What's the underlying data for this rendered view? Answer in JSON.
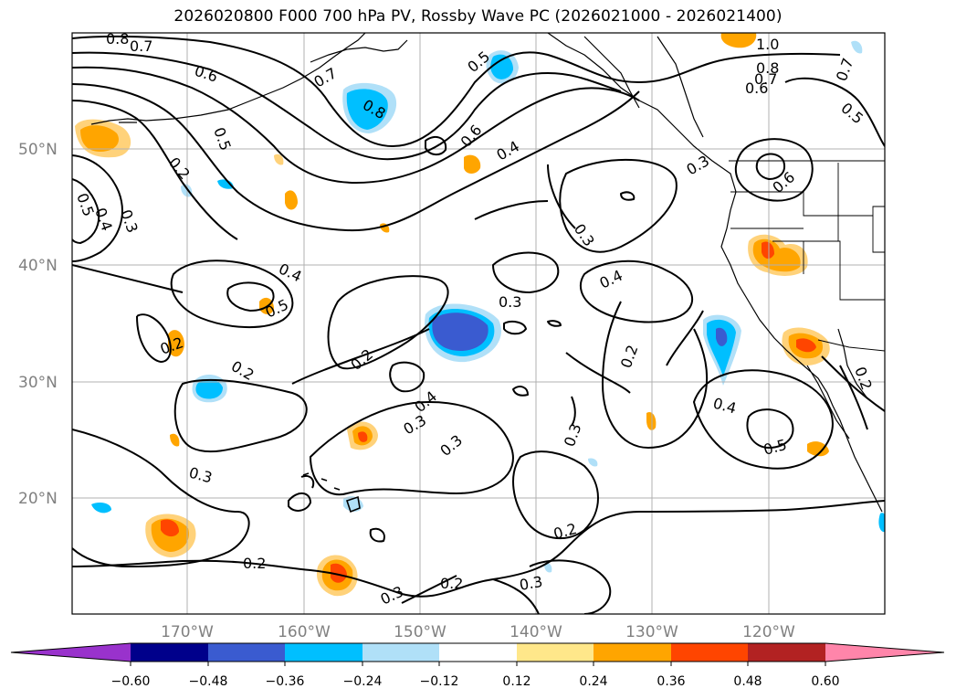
{
  "title": "2026020800 F000 700 hPa PV, Rossby Wave PC (2026021000 - 2026021400)",
  "map": {
    "lat_labels": [
      "50°N",
      "40°N",
      "30°N",
      "20°N"
    ],
    "lon_labels": [
      "170°W",
      "160°W",
      "150°W",
      "140°W",
      "130°W",
      "120°W"
    ]
  },
  "contour_labels": [
    "0.8",
    "0.7",
    "0.6",
    "0.5",
    "0.2",
    "0.5",
    "0.4",
    "0.3",
    "0.7",
    "0.8",
    "0.5",
    "0.6",
    "0.4",
    "1.0",
    "0.8",
    "0.7",
    "0.6",
    "0.7",
    "0.5",
    "0.6",
    "0.3",
    "0.4",
    "0.4",
    "0.5",
    "0.3",
    "0.2",
    "0.2",
    "0.2",
    "0.4",
    "0.3",
    "0.3",
    "0.3",
    "0.2",
    "0.4",
    "0.5",
    "0.2",
    "0.3",
    "0.2",
    "0.2",
    "0.3",
    "0.3",
    "0.2",
    "0.3"
  ],
  "colorbar": {
    "colors": [
      "#9932cc",
      "#00008b",
      "#3a5bd0",
      "#00bfff",
      "#b0e0f8",
      "#ffffff",
      "#ffe78a",
      "#ffa500",
      "#ff4500",
      "#b22222",
      "#ff85aa"
    ],
    "tick_labels": [
      "−0.60",
      "−0.48",
      "−0.36",
      "−0.24",
      "−0.12",
      "0.12",
      "0.24",
      "0.36",
      "0.48",
      "0.60"
    ]
  },
  "colors": {
    "grid": "#b0b0b0",
    "contour": "#000000",
    "axis_label": "#808080"
  }
}
